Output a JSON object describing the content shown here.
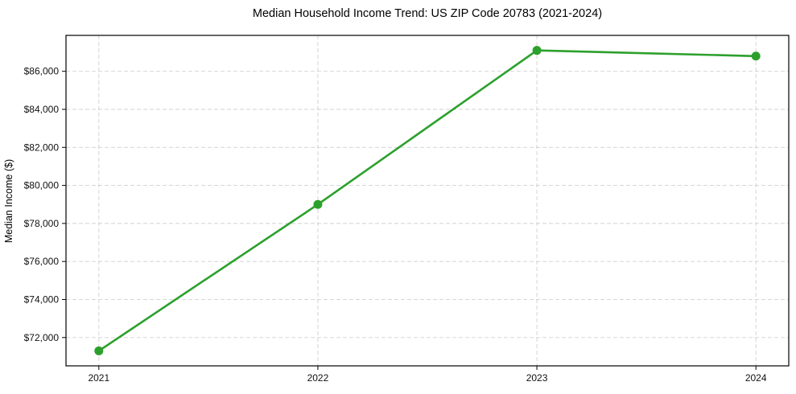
{
  "figure": {
    "title": "Median Household Income Trend: US ZIP Code 20783 (2021-2024)"
  },
  "chart_data": {
    "type": "line",
    "title": "Median Household Income Trend: US ZIP Code 20783 (2021-2024)",
    "xlabel": "",
    "ylabel": "Median Income ($)",
    "categories": [
      "2021",
      "2022",
      "2023",
      "2024"
    ],
    "x_values": [
      2021,
      2022,
      2023,
      2024
    ],
    "series": [
      {
        "values": [
          71300,
          79000,
          87100,
          86800
        ],
        "color": "#2ca02c",
        "marker": "circle",
        "marker_radius": 5.5,
        "line_width": 2.6
      }
    ],
    "xlim": [
      2020.85,
      2024.15
    ],
    "ylim": [
      70510,
      87890
    ],
    "yticks": [
      72000,
      74000,
      76000,
      78000,
      80000,
      82000,
      84000,
      86000
    ],
    "ytick_prefix": "$",
    "grid": {
      "show": true,
      "style": "dashed",
      "color": "#d0d0d0"
    },
    "legend": null,
    "background": "#ffffff",
    "spine_color": "#000000",
    "tick_color": "#000000"
  }
}
